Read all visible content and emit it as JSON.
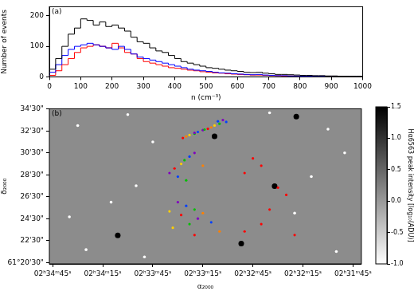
{
  "chart_data": [
    {
      "type": "histogram",
      "panel_label": "(a)",
      "x_label": "n (cm⁻³)",
      "y_label": "Number of events",
      "line_style": "step",
      "bins": [
        0,
        20,
        40,
        60,
        80,
        100,
        120,
        140,
        160,
        180,
        200,
        220,
        240,
        260,
        280,
        300,
        320,
        340,
        360,
        380,
        400,
        420,
        440,
        460,
        480,
        500,
        520,
        540,
        560,
        580,
        600,
        620,
        640,
        660,
        680,
        700,
        720,
        740,
        760,
        780,
        800,
        820,
        840,
        860,
        880,
        900,
        920,
        940,
        960,
        980,
        1000
      ],
      "series": [
        {
          "color": "#000000",
          "values": [
            5,
            25,
            60,
            100,
            140,
            160,
            190,
            185,
            170,
            180,
            165,
            170,
            160,
            150,
            130,
            115,
            110,
            95,
            85,
            80,
            70,
            60,
            50,
            45,
            40,
            35,
            30,
            28,
            25,
            22,
            20,
            18,
            15,
            14,
            15,
            12,
            10,
            8,
            8,
            7,
            6,
            5,
            5,
            4,
            4,
            3,
            3,
            2,
            2,
            2
          ]
        },
        {
          "color": "#0000ff",
          "values": [
            2,
            15,
            40,
            70,
            90,
            100,
            105,
            110,
            105,
            100,
            95,
            90,
            100,
            90,
            75,
            65,
            60,
            55,
            50,
            45,
            40,
            35,
            30,
            25,
            22,
            20,
            18,
            15,
            13,
            12,
            10,
            9,
            8,
            7,
            8,
            6,
            5,
            4,
            4,
            3,
            3,
            2,
            2,
            2,
            2,
            1,
            1,
            1,
            1,
            1
          ]
        },
        {
          "color": "#ff0000",
          "values": [
            0,
            5,
            20,
            40,
            60,
            80,
            95,
            100,
            105,
            100,
            95,
            110,
            95,
            80,
            75,
            60,
            50,
            45,
            40,
            35,
            30,
            28,
            25,
            22,
            20,
            17,
            15,
            13,
            12,
            10,
            9,
            8,
            7,
            6,
            6,
            5,
            4,
            4,
            3,
            3,
            2,
            2,
            2,
            1,
            1,
            1,
            1,
            1,
            0,
            0
          ]
        }
      ],
      "xlim": [
        0,
        1000
      ],
      "xticks": [
        0,
        100,
        200,
        300,
        400,
        500,
        600,
        700,
        800,
        900,
        1000
      ],
      "ylim": [
        0,
        230
      ],
      "yticks": [
        0,
        100,
        200
      ]
    },
    {
      "type": "scatter",
      "panel_label": "(b)",
      "x_label": "α₂₀₀₀",
      "y_label": "δ₂₀₀₀",
      "xlim": [
        9287,
        9100
      ],
      "xticks": [
        {
          "value": 9285,
          "label": "02ʰ34ᵐ45ˢ"
        },
        {
          "value": 9255,
          "label": "02ʰ34ᵐ15ˢ"
        },
        {
          "value": 9225,
          "label": "02ʰ33ᵐ45ˢ"
        },
        {
          "value": 9195,
          "label": "02ʰ33ᵐ15ˢ"
        },
        {
          "value": 9165,
          "label": "02ʰ32ᵐ45ˢ"
        },
        {
          "value": 9135,
          "label": "02ʰ32ᵐ15ˢ"
        },
        {
          "value": 9105,
          "label": "02ʰ31ᵐ45ˢ"
        }
      ],
      "ylim": [
        1222,
        2072
      ],
      "yticks": [
        {
          "value": 1230,
          "label": "61°20'30\""
        },
        {
          "value": 1350,
          "label": "22'30\""
        },
        {
          "value": 1470,
          "label": "24'30\""
        },
        {
          "value": 1590,
          "label": "26'30\""
        },
        {
          "value": 1710,
          "label": "28'30\""
        },
        {
          "value": 1830,
          "label": "30'30\""
        },
        {
          "value": 1950,
          "label": "32'30\""
        },
        {
          "value": 2070,
          "label": "34'30\""
        }
      ],
      "points": {
        "x": [
          9183,
          9181,
          9185,
          9188,
          9190,
          9192,
          9195,
          9198,
          9200,
          9203,
          9205,
          9207,
          9186,
          9194,
          9200,
          9200,
          9203,
          9206,
          9208,
          9195,
          9212,
          9215,
          9210,
          9205,
          9210,
          9205,
          9200,
          9215,
          9195,
          9208,
          9198,
          9190,
          9203,
          9213,
          9185,
          9200,
          9165,
          9160,
          9170,
          9150,
          9145,
          9155,
          9160,
          9170,
          9140
        ],
        "y": [
          2010,
          2000,
          1990,
          1980,
          1970,
          1962,
          1955,
          1945,
          1935,
          1928,
          1920,
          1912,
          2003,
          1958,
          1940,
          1830,
          1810,
          1790,
          1770,
          1760,
          1745,
          1720,
          1700,
          1680,
          1560,
          1540,
          1520,
          1510,
          1500,
          1490,
          1470,
          1450,
          1440,
          1420,
          1400,
          1380,
          1800,
          1760,
          1720,
          1640,
          1600,
          1520,
          1440,
          1400,
          1380
        ],
        "colors": [
          "#8000c0",
          "#0040ff",
          "#00c000",
          "#ffd000",
          "#ff8000",
          "#ff0000",
          "#8000c0",
          "#0040ff",
          "#00c000",
          "#ffd000",
          "#ff8000",
          "#ff0000",
          "#0040ff",
          "#00c000",
          "#8000c0",
          "#8000c0",
          "#0040ff",
          "#00c000",
          "#ffd000",
          "#ff8000",
          "#ff0000",
          "#8000c0",
          "#0040ff",
          "#00c000",
          "#8000c0",
          "#0040ff",
          "#00c000",
          "#ffd000",
          "#ff8000",
          "#ff0000",
          "#8000c0",
          "#0040ff",
          "#00c000",
          "#ffd000",
          "#ff8000",
          "#ff0000",
          "#ff0000",
          "#ff0000",
          "#ff0000",
          "#ff0000",
          "#ff0000",
          "#ff0000",
          "#ff0000",
          "#ff0000",
          "#ff0000"
        ]
      },
      "bright_stars": {
        "color": "#000000",
        "x": [
          9139,
          9188,
          9152,
          9246,
          9172
        ],
        "y": [
          2029,
          1921,
          1648,
          1378,
          1333
        ]
      },
      "faint_stars": {
        "color": "#ffffff",
        "x": [
          9270,
          9240,
          9225,
          9120,
          9110,
          9130,
          9250,
          9275,
          9235,
          9140,
          9265,
          9115,
          9230,
          9155
        ],
        "y": [
          1980,
          2040,
          1890,
          1960,
          1830,
          1700,
          1560,
          1480,
          1650,
          1500,
          1300,
          1290,
          1260,
          2050
        ]
      },
      "colorbar": {
        "label": "Hα6563 peak intensity [log₁₀(ADU)]",
        "range": [
          -1.0,
          1.5
        ],
        "ticks": [
          {
            "value": -1.0,
            "label": "-1.0"
          },
          -0.5,
          {
            "value": 0.0,
            "label": "0.0"
          },
          0.5,
          {
            "value": 1.0,
            "label": "1.0"
          },
          1.5
        ]
      }
    }
  ]
}
